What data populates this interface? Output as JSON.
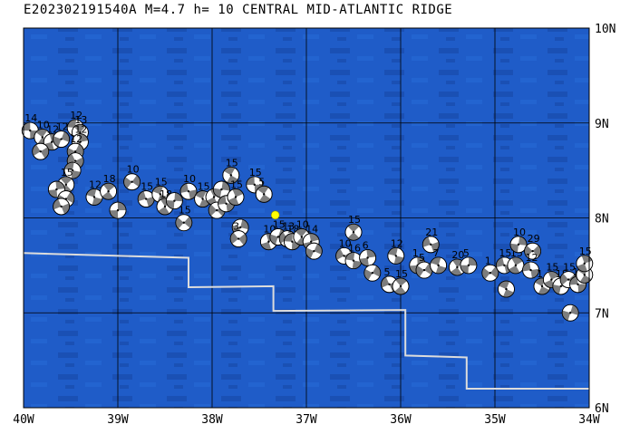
{
  "title": "E202302191540A M=4.7 h= 10 CENTRAL MID-ATLANTIC RIDGE",
  "map": {
    "lon_range": [
      -40,
      -34
    ],
    "lat_range": [
      6,
      10
    ],
    "x_tick_labels": [
      "40W",
      "39W",
      "38W",
      "37W",
      "36W",
      "35W",
      "34W"
    ],
    "y_tick_labels": [
      "10N",
      "9N",
      "8N",
      "7N",
      "6N"
    ],
    "colors": {
      "ocean": "#1f5cc8",
      "ocean_dark": "#1a4fb0",
      "grid": "#000000",
      "boundary": "#dcdcdc",
      "event": "#ffff00"
    },
    "event_star": {
      "lon": -37.33,
      "lat": 8.03
    },
    "plate_boundary": [
      [
        -40.0,
        7.63
      ],
      [
        -39.7,
        7.62
      ],
      [
        -38.25,
        7.58
      ],
      [
        -38.25,
        7.27
      ],
      [
        -37.35,
        7.28
      ],
      [
        -37.35,
        7.02
      ],
      [
        -35.95,
        7.03
      ],
      [
        -35.95,
        6.55
      ],
      [
        -35.3,
        6.53
      ],
      [
        -35.3,
        6.2
      ],
      [
        -34.0,
        6.2
      ]
    ],
    "mechanisms": [
      {
        "lon": -39.93,
        "lat": 8.92,
        "label": "14"
      },
      {
        "lon": -39.8,
        "lat": 8.85,
        "label": "10"
      },
      {
        "lon": -39.7,
        "lat": 8.8,
        "label": "12"
      },
      {
        "lon": -39.6,
        "lat": 8.83,
        "label": "12"
      },
      {
        "lon": -39.82,
        "lat": 8.7,
        "label": ""
      },
      {
        "lon": -39.45,
        "lat": 8.95,
        "label": "12"
      },
      {
        "lon": -39.4,
        "lat": 8.9,
        "label": "13"
      },
      {
        "lon": -39.4,
        "lat": 8.8,
        "label": "12"
      },
      {
        "lon": -39.45,
        "lat": 8.7,
        "label": "12"
      },
      {
        "lon": -39.45,
        "lat": 8.6,
        "label": ""
      },
      {
        "lon": -39.48,
        "lat": 8.5,
        "label": ""
      },
      {
        "lon": -39.55,
        "lat": 8.35,
        "label": "15"
      },
      {
        "lon": -39.65,
        "lat": 8.3,
        "label": ""
      },
      {
        "lon": -39.55,
        "lat": 8.2,
        "label": ""
      },
      {
        "lon": -39.6,
        "lat": 8.12,
        "label": ""
      },
      {
        "lon": -39.25,
        "lat": 8.22,
        "label": "12"
      },
      {
        "lon": -39.1,
        "lat": 8.28,
        "label": "18"
      },
      {
        "lon": -39.0,
        "lat": 8.08,
        "label": ""
      },
      {
        "lon": -38.85,
        "lat": 8.38,
        "label": "10"
      },
      {
        "lon": -38.7,
        "lat": 8.2,
        "label": "15"
      },
      {
        "lon": -38.55,
        "lat": 8.25,
        "label": "15"
      },
      {
        "lon": -38.5,
        "lat": 8.12,
        "label": "18"
      },
      {
        "lon": -38.4,
        "lat": 8.18,
        "label": ""
      },
      {
        "lon": -38.3,
        "lat": 7.95,
        "label": "15"
      },
      {
        "lon": -38.25,
        "lat": 8.28,
        "label": "10"
      },
      {
        "lon": -38.1,
        "lat": 8.2,
        "label": "15"
      },
      {
        "lon": -37.98,
        "lat": 8.22,
        "label": ""
      },
      {
        "lon": -37.9,
        "lat": 8.3,
        "label": ""
      },
      {
        "lon": -37.95,
        "lat": 8.08,
        "label": ""
      },
      {
        "lon": -37.85,
        "lat": 8.15,
        "label": ""
      },
      {
        "lon": -37.8,
        "lat": 8.45,
        "label": "15"
      },
      {
        "lon": -37.75,
        "lat": 8.22,
        "label": "15"
      },
      {
        "lon": -37.7,
        "lat": 7.9,
        "label": ""
      },
      {
        "lon": -37.72,
        "lat": 7.78,
        "label": "3"
      },
      {
        "lon": -37.55,
        "lat": 8.35,
        "label": "15"
      },
      {
        "lon": -37.45,
        "lat": 8.25,
        "label": "5"
      },
      {
        "lon": -37.4,
        "lat": 7.75,
        "label": "10"
      },
      {
        "lon": -37.3,
        "lat": 7.8,
        "label": "15"
      },
      {
        "lon": -37.2,
        "lat": 7.78,
        "label": "13"
      },
      {
        "lon": -37.15,
        "lat": 7.75,
        "label": "18"
      },
      {
        "lon": -37.05,
        "lat": 7.8,
        "label": "10"
      },
      {
        "lon": -36.95,
        "lat": 7.75,
        "label": "14"
      },
      {
        "lon": -36.92,
        "lat": 7.65,
        "label": ""
      },
      {
        "lon": -36.6,
        "lat": 7.6,
        "label": "10"
      },
      {
        "lon": -36.5,
        "lat": 7.55,
        "label": "16"
      },
      {
        "lon": -36.5,
        "lat": 7.85,
        "label": "15"
      },
      {
        "lon": -36.35,
        "lat": 7.58,
        "label": "6"
      },
      {
        "lon": -36.3,
        "lat": 7.42,
        "label": ""
      },
      {
        "lon": -36.12,
        "lat": 7.3,
        "label": "5"
      },
      {
        "lon": -36.05,
        "lat": 7.6,
        "label": "12"
      },
      {
        "lon": -36.0,
        "lat": 7.28,
        "label": "15"
      },
      {
        "lon": -35.82,
        "lat": 7.5,
        "label": "1"
      },
      {
        "lon": -35.75,
        "lat": 7.45,
        "label": "5"
      },
      {
        "lon": -35.68,
        "lat": 7.72,
        "label": "21"
      },
      {
        "lon": -35.6,
        "lat": 7.5,
        "label": "7"
      },
      {
        "lon": -35.4,
        "lat": 7.48,
        "label": "20"
      },
      {
        "lon": -35.28,
        "lat": 7.5,
        "label": "5"
      },
      {
        "lon": -35.05,
        "lat": 7.42,
        "label": "1"
      },
      {
        "lon": -34.9,
        "lat": 7.5,
        "label": "15"
      },
      {
        "lon": -34.88,
        "lat": 7.25,
        "label": ""
      },
      {
        "lon": -34.78,
        "lat": 7.5,
        "label": "15"
      },
      {
        "lon": -34.75,
        "lat": 7.72,
        "label": "10"
      },
      {
        "lon": -34.6,
        "lat": 7.65,
        "label": "29"
      },
      {
        "lon": -34.62,
        "lat": 7.45,
        "label": "12"
      },
      {
        "lon": -34.5,
        "lat": 7.28,
        "label": "1"
      },
      {
        "lon": -34.4,
        "lat": 7.35,
        "label": "15"
      },
      {
        "lon": -34.3,
        "lat": 7.28,
        "label": "18"
      },
      {
        "lon": -34.22,
        "lat": 7.35,
        "label": "15"
      },
      {
        "lon": -34.12,
        "lat": 7.3,
        "label": "15"
      },
      {
        "lon": -34.05,
        "lat": 7.4,
        "label": "15"
      },
      {
        "lon": -34.05,
        "lat": 7.52,
        "label": "15"
      },
      {
        "lon": -34.2,
        "lat": 7.0,
        "label": ""
      }
    ]
  }
}
